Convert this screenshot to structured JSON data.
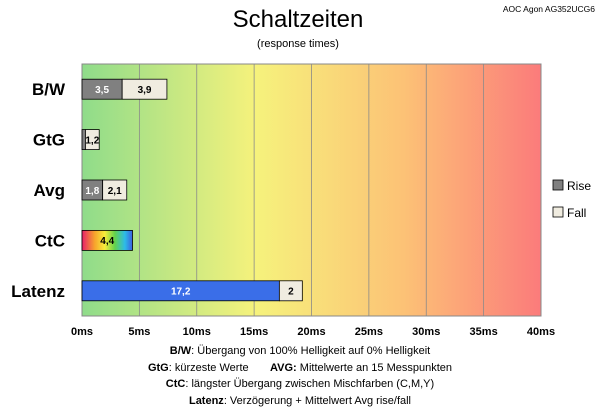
{
  "header": {
    "title": "Schaltzeiten",
    "subtitle": "(response times)",
    "model": "AOC Agon AG352UCG6"
  },
  "legend": [
    {
      "name": "Rise",
      "color": "#808080"
    },
    {
      "name": "Fall",
      "color": "#f0ece0"
    }
  ],
  "notes": {
    "line1_key": "B/W",
    "line1_text": ":  Übergang von 100% Helligkeit auf 0% Helligkeit",
    "line2_key_a": "GtG",
    "line2_text_a": ": kürzeste  Werte",
    "line2_key_b": "AVG:",
    "line2_text_b": " Mittelwerte  an 15 Messpunkten",
    "line3_key": "CtC",
    "line3_text": ": längster Übergang  zwischen Mischfarben (C,M,Y)",
    "line4_key": "Latenz",
    "line4_text": ": Verzögerung  + Mittelwert Avg rise/fall"
  },
  "chart_data": {
    "type": "bar",
    "orientation": "horizontal",
    "stacked": true,
    "title": "Schaltzeiten",
    "subtitle": "(response times)",
    "xlim": [
      0,
      40
    ],
    "xticks": [
      "0ms",
      "5ms",
      "10ms",
      "15ms",
      "20ms",
      "25ms",
      "30ms",
      "35ms",
      "40ms"
    ],
    "grid": true,
    "legend_position": "right",
    "rows": [
      {
        "category": "B/W",
        "segments": [
          {
            "series": "Rise",
            "value": 3.5,
            "label": "3,5",
            "color": "#808080",
            "text_color": "#ffffff"
          },
          {
            "series": "Fall",
            "value": 3.9,
            "label": "3,9",
            "color": "#f0ece0",
            "text_color": "#000000"
          }
        ]
      },
      {
        "category": "GtG",
        "segments": [
          {
            "series": "Rise",
            "value": 0.3,
            "label": "",
            "color": "#808080",
            "text_color": "#ffffff"
          },
          {
            "series": "Fall",
            "value": 1.2,
            "label": "1,2",
            "color": "#f0ece0",
            "text_color": "#000000"
          }
        ]
      },
      {
        "category": "Avg",
        "segments": [
          {
            "series": "Rise",
            "value": 1.8,
            "label": "1,8",
            "color": "#808080",
            "text_color": "#ffffff"
          },
          {
            "series": "Fall",
            "value": 2.1,
            "label": "2,1",
            "color": "#f0ece0",
            "text_color": "#000000"
          }
        ]
      },
      {
        "category": "CtC",
        "segments": [
          {
            "series": "CtC",
            "value": 4.4,
            "label": "4,4",
            "color": "rainbow",
            "text_color": "#000000"
          }
        ]
      },
      {
        "category": "Latenz",
        "segments": [
          {
            "series": "Verzögerung",
            "value": 17.2,
            "label": "17,2",
            "color": "#3a6ee8",
            "text_color": "#ffffff"
          },
          {
            "series": "Avg",
            "value": 2,
            "label": "2",
            "color": "#f0ece0",
            "text_color": "#000000"
          }
        ]
      }
    ]
  }
}
